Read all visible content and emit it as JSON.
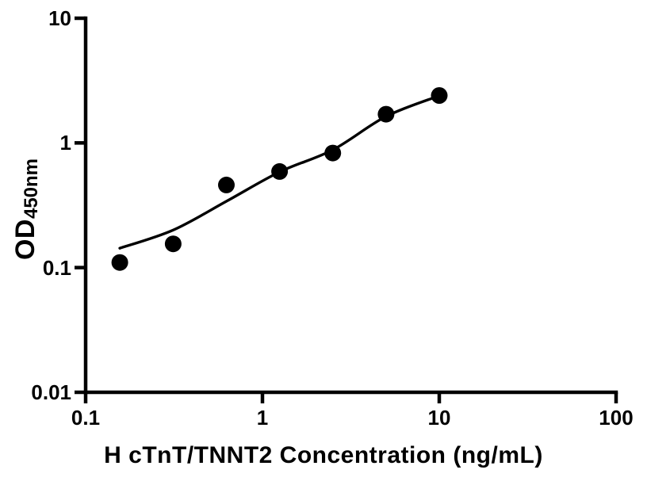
{
  "figure": {
    "background_color": "#ffffff",
    "ink_color": "#000000"
  },
  "chart_data": {
    "type": "scatter",
    "title": "",
    "xlabel": "H cTnT/TNNT2 Concentration (ng/mL)",
    "ylabel": "OD",
    "ylabel_subscript": "450nm",
    "x_scale": "log",
    "y_scale": "log",
    "xlim": [
      0.1,
      100
    ],
    "ylim": [
      0.01,
      10
    ],
    "grid": false,
    "legend_position": "none",
    "x_ticks": [
      {
        "value": 0.1,
        "label": "0.1"
      },
      {
        "value": 1,
        "label": "1"
      },
      {
        "value": 10,
        "label": "10"
      },
      {
        "value": 100,
        "label": "100"
      }
    ],
    "y_ticks": [
      {
        "value": 0.01,
        "label": "0.01"
      },
      {
        "value": 0.1,
        "label": "0.1"
      },
      {
        "value": 1,
        "label": "1"
      },
      {
        "value": 10,
        "label": "10"
      }
    ],
    "series": [
      {
        "name": "standard-data-points",
        "type": "scatter",
        "marker": "circle",
        "marker_radius": 10.5,
        "color": "#000000",
        "points": [
          {
            "x": 0.156,
            "y": 0.11
          },
          {
            "x": 0.3125,
            "y": 0.155
          },
          {
            "x": 0.625,
            "y": 0.46
          },
          {
            "x": 1.25,
            "y": 0.59
          },
          {
            "x": 2.5,
            "y": 0.83
          },
          {
            "x": 5,
            "y": 1.7
          },
          {
            "x": 10,
            "y": 2.4
          }
        ]
      },
      {
        "name": "fit-curve",
        "type": "line",
        "stroke_width": 3.4,
        "color": "#000000",
        "points": [
          {
            "x": 0.156,
            "y": 0.143
          },
          {
            "x": 0.3125,
            "y": 0.2
          },
          {
            "x": 0.625,
            "y": 0.34
          },
          {
            "x": 1.25,
            "y": 0.585
          },
          {
            "x": 2.5,
            "y": 0.88
          },
          {
            "x": 5,
            "y": 1.63
          },
          {
            "x": 10,
            "y": 2.39
          }
        ]
      }
    ]
  }
}
